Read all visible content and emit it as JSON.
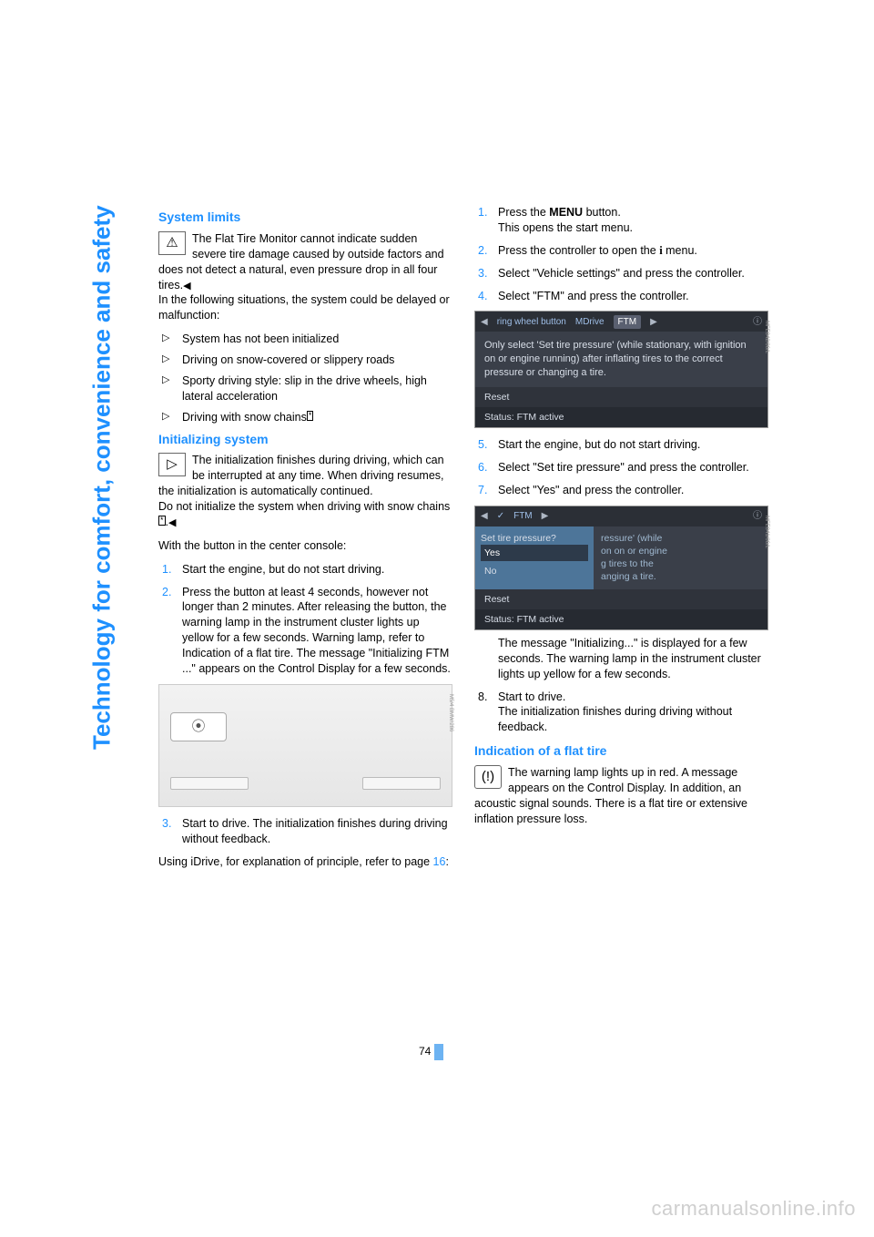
{
  "side_tab": "Technology for comfort, convenience and safety",
  "page_number": "74",
  "watermark": "carmanualsonline.info",
  "left": {
    "h_system_limits": "System limits",
    "warn_para": "The Flat Tire Monitor cannot indicate sudden severe tire damage caused by outside factors and does not detect a natural, even pressure drop in all four tires.",
    "warn_end": "◀",
    "delay_intro": "In the following situations, the system could be delayed or malfunction:",
    "bullets": [
      "System has not been initialized",
      "Driving on snow-covered or slippery roads",
      "Sporty driving style: slip in the drive wheels, high lateral acceleration",
      "Driving with snow chains"
    ],
    "bullet4_star": "*",
    "h_init": "Initializing system",
    "init_para1": "The initialization finishes during driving, which can be interrupted at any time. When driving resumes, the initialization is automatically continued.",
    "init_para2a": "Do not initialize the system when driving with snow chains",
    "init_star": "*",
    "init_para2b": ".",
    "init_end": "◀",
    "console_intro": "With the button in the center console:",
    "steps": [
      "Start the engine, but do not start driving.",
      "Press the button at least 4 seconds, however not longer than 2 minutes. After releasing the button, the warning lamp in the instrument cluster lights up yellow for a few seconds. Warning lamp, refer to Indication of a flat tire. The message \"Initializing FTM ...\" appears on the Control Display for a few seconds.",
      "Start to drive. The initialization finishes during driving without feedback."
    ],
    "idrive_ref_a": "Using iDrive, for explanation of principle, refer to page ",
    "idrive_ref_page": "16",
    "idrive_ref_b": ":",
    "photo_label": "M5/4 BMW/286"
  },
  "right": {
    "steps_a": [
      {
        "n": "1.",
        "t_a": "Press the ",
        "t_bold": "MENU",
        "t_b": " button.",
        "sub": "This opens the start menu."
      },
      {
        "n": "2.",
        "t_a": "Press the controller to open the ",
        "t_info": "i",
        "t_b": " menu."
      },
      {
        "n": "3.",
        "t": "Select \"Vehicle settings\" and press the controller."
      },
      {
        "n": "4.",
        "t": "Select \"FTM\" and press the controller."
      }
    ],
    "scr1": {
      "tabs_left_arrow": "◀",
      "tab1": "ring wheel button",
      "tab2": "MDrive",
      "tab3": "FTM",
      "tabs_right_arrow": "▶",
      "tabs_info": "ⓘ",
      "body": "Only select  'Set tire pressure' (while stationary, with ignition on or engine running) after inflating tires to the correct pressure or changing a tire.",
      "reset": "Reset",
      "status": "Status:  FTM active",
      "vlabel": "MFE042/06/L"
    },
    "steps_b": [
      {
        "n": "5.",
        "t": "Start the engine, but do not start driving."
      },
      {
        "n": "6.",
        "t": "Select \"Set tire pressure\" and press the controller."
      },
      {
        "n": "7.",
        "t": "Select \"Yes\" and press the controller."
      }
    ],
    "scr2": {
      "tabs_left_arrow": "◀",
      "tab_check": "✓",
      "tab_label": "FTM",
      "tabs_right_arrow": "▶",
      "tabs_info": "ⓘ",
      "left_q": "Set tire pressure?",
      "opt_yes": "Yes",
      "opt_no": "No",
      "right_lines": "ressure' (while\non on or engine\ng tires to the\nanging a tire.",
      "reset": "Reset",
      "status": "Status:   FTM active",
      "vlabel": "MFE041/06/L"
    },
    "after_scr2": "The message \"Initializing...\" is displayed for a few seconds. The warning lamp in the instrument cluster lights up yellow for a few seconds.",
    "step8_n": "8.",
    "step8_t": "Start to drive.",
    "step8_sub": "The initialization finishes during driving without feedback.",
    "h_flat": "Indication of a flat tire",
    "flat_para": "The warning lamp lights up in red. A message appears on the Control Display. In addition, an acoustic signal sounds. There is a flat tire or extensive inflation pressure loss."
  }
}
